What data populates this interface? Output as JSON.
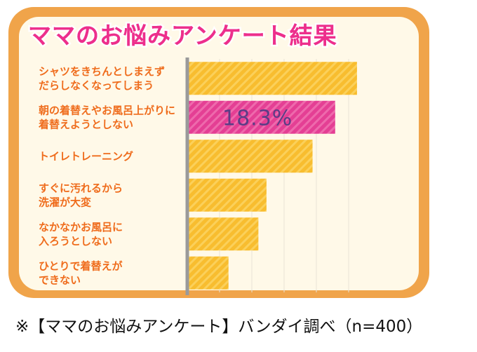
{
  "title": "ママのお悩みアンケート結果",
  "caption": "※【ママのお悩みアンケート】バンダイ調べ（n=400）",
  "colors": {
    "frame": "#f0a44a",
    "panel": "#fff9e8",
    "bar": "#f8bd2f",
    "highlight_bar": "#e43f94",
    "axis": "#9a9a9a",
    "title": "#ed2f8c",
    "category_text": "#ef6c1c",
    "value_text": "#5b3d86"
  },
  "chart_data": {
    "type": "bar",
    "orientation": "horizontal",
    "title": "ママのお悩みアンケート結果",
    "categories": [
      [
        "シャツをきちんとしまえず",
        "だらしなくなってしまう"
      ],
      [
        "朝の着替えやお風呂上がりに",
        "着替えようとしない"
      ],
      [
        "トイレトレーニング"
      ],
      [
        "すぐに汚れるから",
        "洗濯が大変"
      ],
      [
        "なかなかお風呂に",
        "入ろうとしない"
      ],
      [
        "ひとりで着替えが",
        "できない"
      ]
    ],
    "values": [
      21.0,
      18.3,
      15.5,
      9.8,
      8.8,
      5.1
    ],
    "highlight_index": 1,
    "data_labels": [
      null,
      "18.3%",
      null,
      null,
      null,
      null
    ],
    "xlim": [
      0,
      25
    ],
    "grid": false
  }
}
